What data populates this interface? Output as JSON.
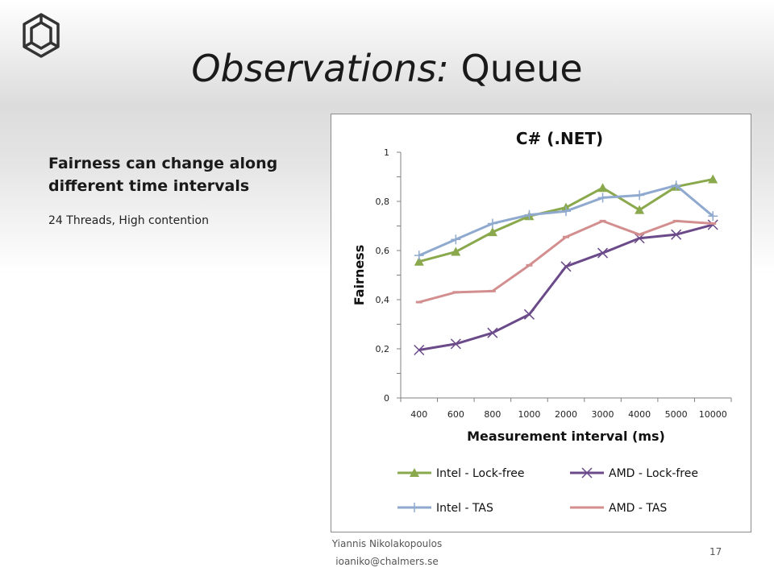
{
  "slide": {
    "title_italic": "Observations:",
    "title_rest": "Queue",
    "heading": "Fairness can change along different time intervals",
    "subtext": "24 Threads, High contention"
  },
  "footer": {
    "name": "Yiannis Nikolakopoulos",
    "email": "ioaniko@chalmers.se",
    "page": "17"
  },
  "logo": {
    "icon": "chalmers-logo-icon"
  },
  "chart_data": {
    "type": "line",
    "title": "C# (.NET)",
    "xlabel": "Measurement interval (ms)",
    "ylabel": "Fairness",
    "categories": [
      "400",
      "600",
      "800",
      "1000",
      "2000",
      "3000",
      "4000",
      "5000",
      "10000"
    ],
    "ylim": [
      0,
      1
    ],
    "yticks": [
      "0",
      "0,2",
      "0,4",
      "0,6",
      "0,8",
      "1"
    ],
    "grid": false,
    "legend": "bottom",
    "series": [
      {
        "name": "Intel - Lock-free",
        "color": "#8aa84c",
        "marker": "triangle",
        "values": [
          0.555,
          0.595,
          0.675,
          0.74,
          0.775,
          0.855,
          0.765,
          0.86,
          0.89
        ]
      },
      {
        "name": "AMD - Lock-free",
        "color": "#6b4a8a",
        "marker": "x",
        "values": [
          0.195,
          0.22,
          0.265,
          0.34,
          0.535,
          0.59,
          0.65,
          0.665,
          0.705
        ]
      },
      {
        "name": "Intel - TAS",
        "color": "#8fa9cf",
        "marker": "plus",
        "values": [
          0.58,
          0.645,
          0.71,
          0.745,
          0.76,
          0.815,
          0.825,
          0.865,
          0.74
        ]
      },
      {
        "name": "AMD - TAS",
        "color": "#d38f8f",
        "marker": "dash",
        "values": [
          0.39,
          0.43,
          0.435,
          0.54,
          0.655,
          0.72,
          0.665,
          0.72,
          0.71
        ]
      }
    ]
  }
}
